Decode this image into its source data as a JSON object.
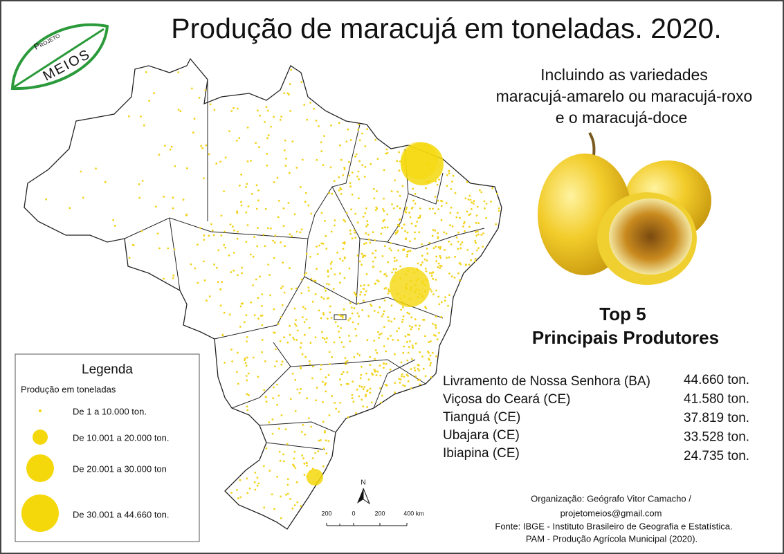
{
  "title": "Produção de maracujá em toneladas. 2020.",
  "logo": {
    "top": "Projeto",
    "bottom": "Meios"
  },
  "subtitle": [
    "Incluindo as variedades",
    "maracujá-amarelo ou maracujá-roxo",
    "e o maracujá-doce"
  ],
  "legend": {
    "title": "Legenda",
    "subtitle": "Produção em toneladas",
    "items": [
      "De 1 a 10.000 ton.",
      "De 10.001 a 20.000 ton.",
      "De 20.001 a 30.000 ton",
      "De 30.001 a 44.660 ton."
    ]
  },
  "top5": {
    "heading": [
      "Top 5",
      "Principais Produtores"
    ],
    "rows": [
      [
        "Livramento de Nossa Senhora (BA)",
        "44.660 ton."
      ],
      [
        "Viçosa do Ceará (CE)",
        "41.580 ton."
      ],
      [
        "Tianguá (CE)",
        "37.819 ton."
      ],
      [
        "Ubajara (CE)",
        "33.528 ton."
      ],
      [
        "Ibiapina (CE)",
        "24.735 ton."
      ]
    ]
  },
  "scale": {
    "north": "N",
    "labels": [
      "200",
      "0",
      "200",
      "400 km"
    ]
  },
  "credits": [
    "Organização: Geógrafo Vitor Camacho /",
    "projetomeios@gmail.com",
    "Fonte: IBGE - Instituto Brasileiro de Geografia e Estatística.",
    "PAM - Produção Agrícola Municipal (2020)."
  ]
}
